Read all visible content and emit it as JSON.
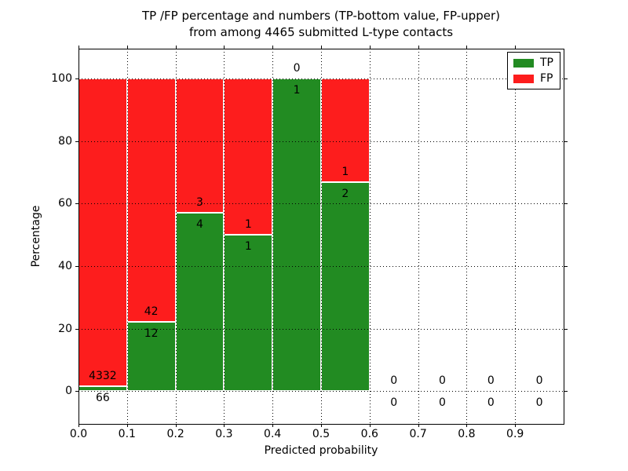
{
  "figure": {
    "title_line1": "TP /FP percentage and numbers (TP-bottom value, FP-upper)",
    "title_line2": "from among 4465 submitted L-type contacts"
  },
  "chart_data": {
    "type": "bar",
    "stacked": true,
    "title": "TP /FP percentage and numbers (TP-bottom value, FP-upper)\nfrom among 4465 submitted L-type contacts",
    "xlabel": "Predicted probability",
    "ylabel": "Percentage",
    "total_contacts": 4465,
    "xlim": [
      0.0,
      1.0
    ],
    "ylim": [
      -10.5,
      109.5
    ],
    "x_ticks": [
      0.0,
      0.1,
      0.2,
      0.3,
      0.4,
      0.5,
      0.6,
      0.7,
      0.8,
      0.9
    ],
    "x_tick_labels": [
      "0.0",
      "0.1",
      "0.2",
      "0.3",
      "0.4",
      "0.5",
      "0.6",
      "0.7",
      "0.8",
      "0.9"
    ],
    "y_ticks": [
      0,
      20,
      40,
      60,
      80,
      100
    ],
    "y_tick_labels": [
      "0",
      "20",
      "40",
      "60",
      "80",
      "100"
    ],
    "grid": "dotted, both axes, drawn above bars",
    "bin_width": 0.1,
    "categories": [
      "0.0-0.1",
      "0.1-0.2",
      "0.2-0.3",
      "0.3-0.4",
      "0.4-0.5",
      "0.5-0.6",
      "0.6-0.7",
      "0.7-0.8",
      "0.8-0.9",
      "0.9-1.0"
    ],
    "series": [
      {
        "name": "TP",
        "color": "#228b22",
        "counts": [
          66,
          12,
          4,
          1,
          1,
          2,
          0,
          0,
          0,
          0
        ],
        "percentages": [
          1.5,
          22.2,
          57.1,
          50.0,
          100.0,
          66.7,
          0,
          0,
          0,
          0
        ]
      },
      {
        "name": "FP",
        "color": "#fd1d1d",
        "counts": [
          4332,
          42,
          3,
          1,
          0,
          1,
          0,
          0,
          0,
          0
        ],
        "percentages": [
          98.5,
          77.8,
          42.9,
          50.0,
          0.0,
          33.3,
          0,
          0,
          0,
          0
        ]
      }
    ],
    "annotation_note": "FP count shown above TP/FP boundary, TP count shown below it",
    "legend": {
      "position": "upper right",
      "entries": [
        {
          "label": "TP",
          "color": "#228b22"
        },
        {
          "label": "FP",
          "color": "#fd1d1d"
        }
      ]
    }
  }
}
